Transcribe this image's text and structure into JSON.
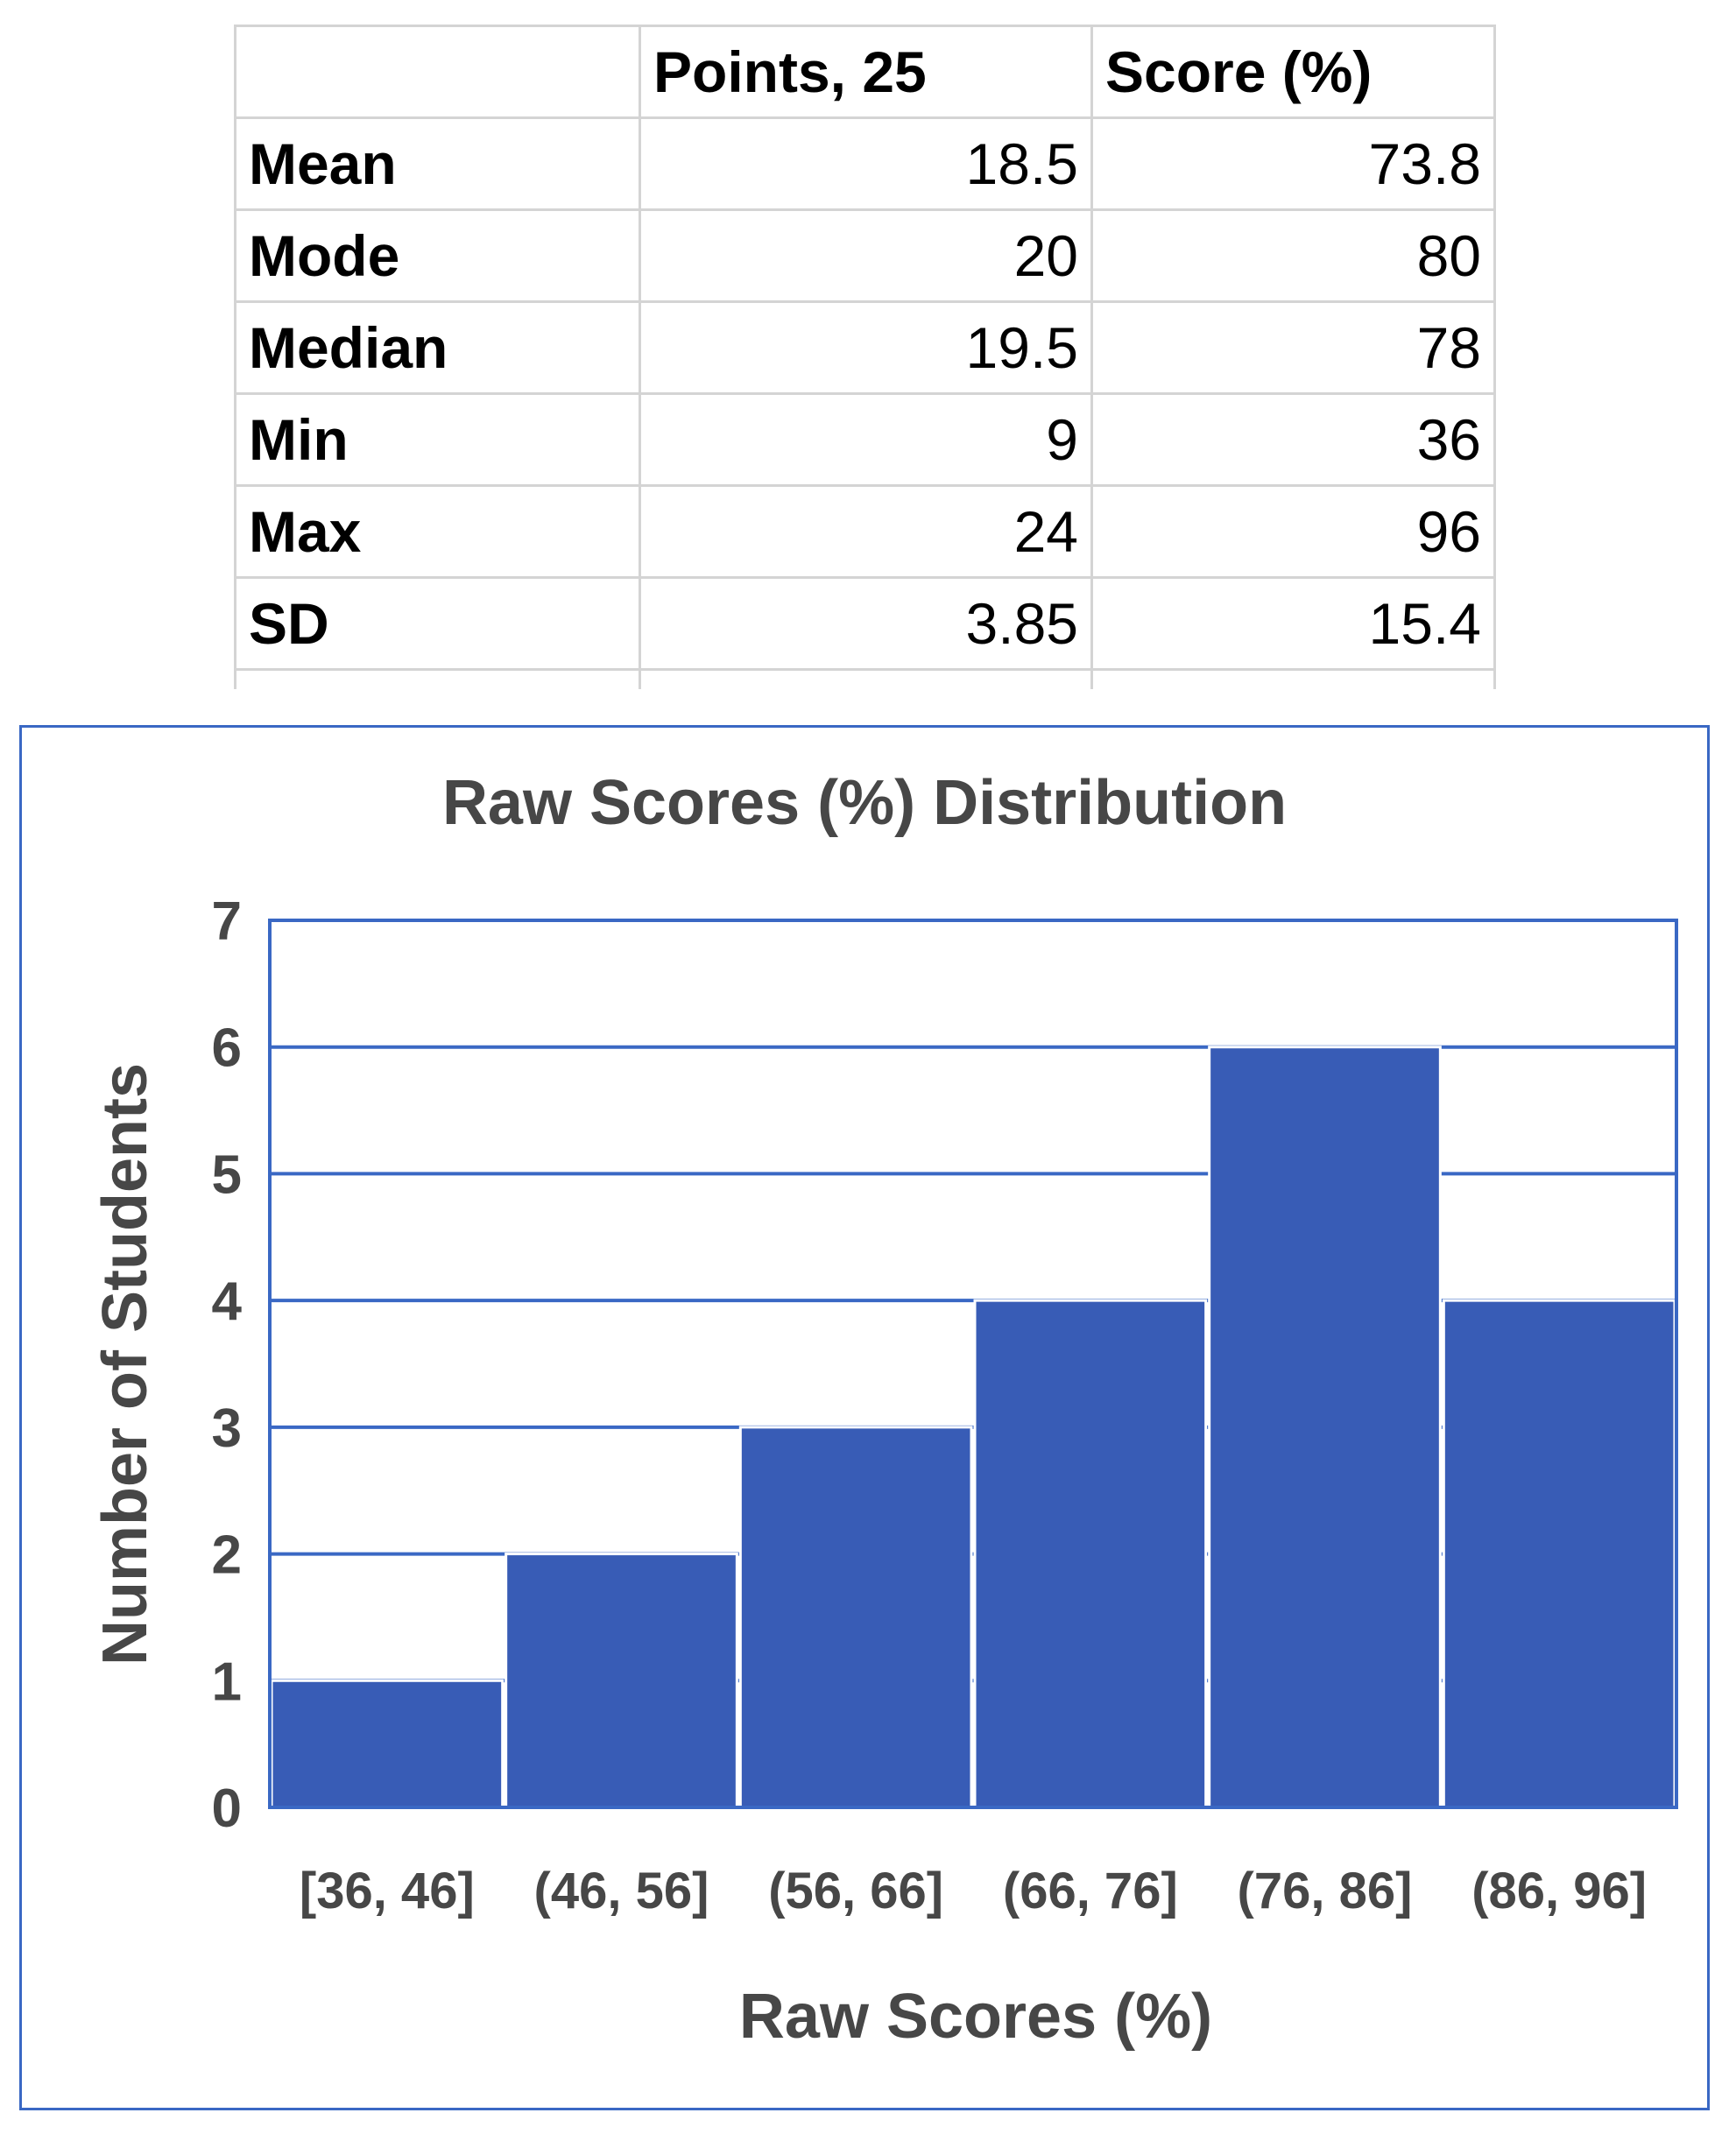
{
  "stats_table": {
    "headers": [
      "",
      "Points, 25",
      "Score (%)"
    ],
    "rows": [
      {
        "label": "Mean",
        "points": "18.5",
        "score": "73.8"
      },
      {
        "label": "Mode",
        "points": "20",
        "score": "80"
      },
      {
        "label": "Median",
        "points": "19.5",
        "score": "78"
      },
      {
        "label": "Min",
        "points": "9",
        "score": "36"
      },
      {
        "label": "Max",
        "points": "24",
        "score": "96"
      },
      {
        "label": "SD",
        "points": "3.85",
        "score": "15.4"
      }
    ]
  },
  "chart_data": {
    "type": "bar",
    "title": "Raw Scores (%) Distribution",
    "xlabel": "Raw Scores (%)",
    "ylabel": "Number of Students",
    "categories": [
      "[36, 46]",
      "(46, 56]",
      "(56, 66]",
      "(66, 76]",
      "(76, 86]",
      "(86, 96]"
    ],
    "values": [
      1,
      2,
      3,
      4,
      6,
      4
    ],
    "ylim": [
      0,
      7
    ],
    "yticks": [
      0,
      1,
      2,
      3,
      4,
      5,
      6,
      7
    ],
    "grid": true,
    "legend": "none",
    "colors": {
      "bar": "#385cb6",
      "grid": "#3a68c4",
      "border": "#3a68c4",
      "text": "#474747"
    }
  }
}
